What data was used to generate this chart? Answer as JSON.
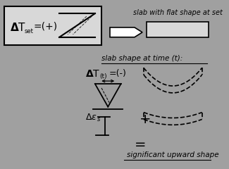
{
  "bg_color": "#a0a0a0",
  "box_color": "#d8d8d8",
  "line_color": "#000000",
  "title_top": "slab with flat shape at set",
  "label_time": "slab shape at time (t):",
  "label_result": "significant upward shape",
  "label_plus": "+",
  "label_equal": "="
}
